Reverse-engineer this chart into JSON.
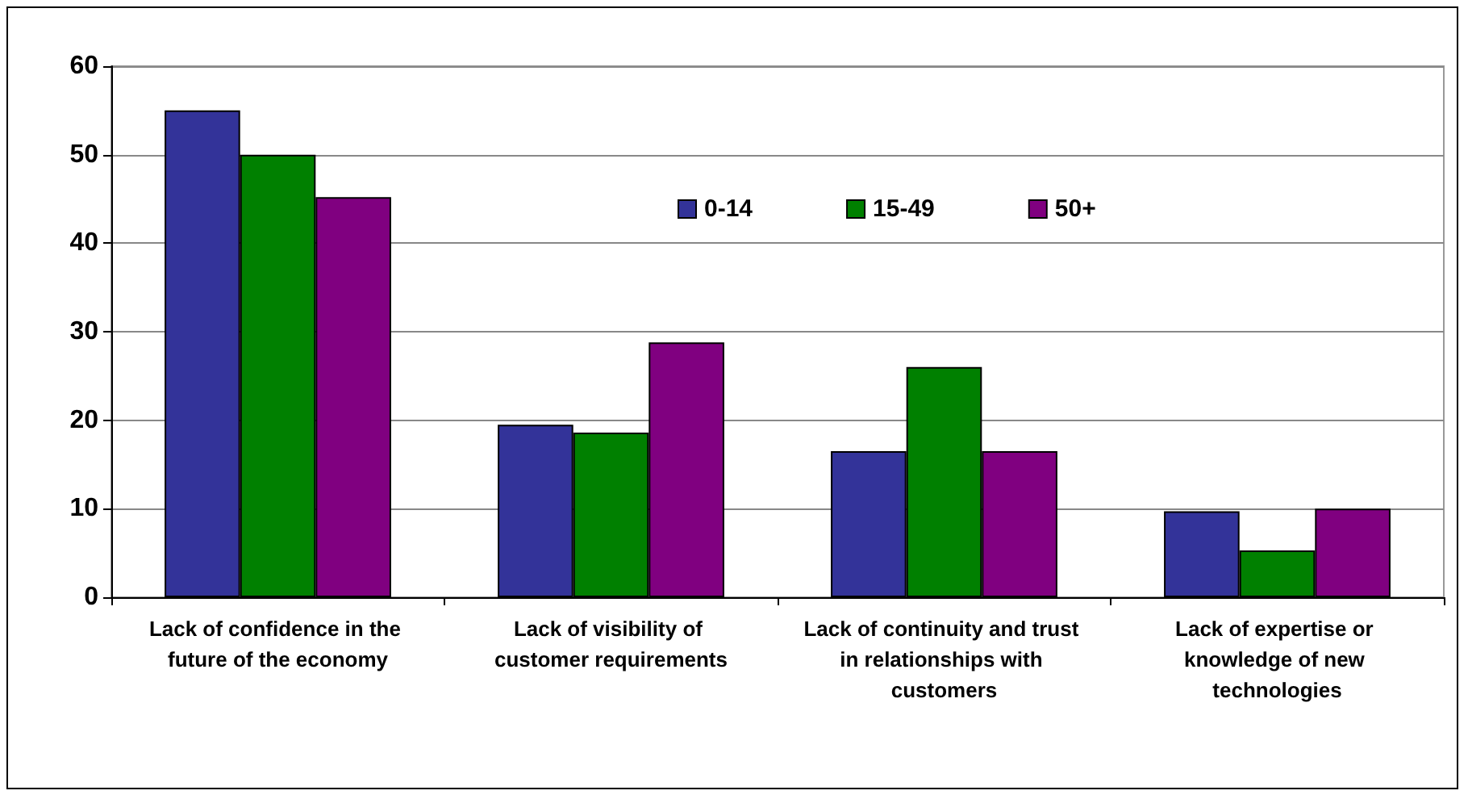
{
  "chart_data": {
    "type": "bar",
    "categories": [
      "Lack of confidence in the future of the economy",
      "Lack of visibility of customer requirements",
      "Lack of continuity and trust in relationships with customers",
      "Lack of expertise or knowledge of new technologies"
    ],
    "series": [
      {
        "name": "0-14",
        "color": "#333399",
        "values": [
          55,
          19.5,
          16.5,
          9.7
        ]
      },
      {
        "name": "15-49",
        "color": "#008000",
        "values": [
          50,
          18.6,
          26,
          5.3
        ]
      },
      {
        "name": "50+",
        "color": "#800080",
        "values": [
          45.2,
          28.8,
          16.5,
          10
        ]
      }
    ],
    "ylim": [
      0,
      60
    ],
    "yticks": [
      0,
      10,
      20,
      30,
      40,
      50,
      60
    ],
    "grid": "y",
    "legend": "top"
  }
}
